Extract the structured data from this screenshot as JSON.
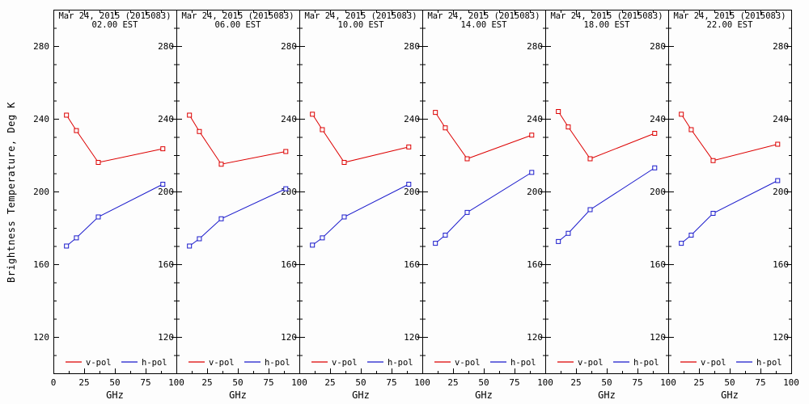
{
  "figure": {
    "ylabel": "Brightness Temperature, Deg K",
    "xlabel": "GHz",
    "colors": {
      "vpol": "#dd0000",
      "hpol": "#1a1acc",
      "axis": "#000000",
      "background": "#fdfdfd"
    },
    "legend": {
      "position": "bottom-inside",
      "entries": [
        {
          "label": "v-pol",
          "color": "#dd0000"
        },
        {
          "label": "h-pol",
          "color": "#1a1acc"
        }
      ]
    }
  },
  "chart_data": [
    {
      "type": "line",
      "title": "Mar 24, 2015 (2015083)",
      "subtitle": "02.00 EST",
      "xlabel": "GHz",
      "xlim": [
        0,
        100
      ],
      "ylim": [
        100,
        300
      ],
      "xticks": [
        0,
        25,
        50,
        75,
        100
      ],
      "yticks": [
        120,
        160,
        200,
        240,
        280
      ],
      "x": [
        10.65,
        18.7,
        36.5,
        89.0
      ],
      "series": [
        {
          "name": "v-pol",
          "color": "#dd0000",
          "values": [
            242.0,
            233.5,
            216.0,
            223.5
          ]
        },
        {
          "name": "h-pol",
          "color": "#1a1acc",
          "values": [
            170.0,
            174.5,
            186.0,
            204.0
          ]
        }
      ]
    },
    {
      "type": "line",
      "title": "Mar 24, 2015 (2015083)",
      "subtitle": "06.00 EST",
      "xlabel": "GHz",
      "xlim": [
        0,
        100
      ],
      "ylim": [
        100,
        300
      ],
      "xticks": [
        25,
        50,
        75,
        100
      ],
      "yticks": [
        120,
        160,
        200,
        240,
        280
      ],
      "x": [
        10.65,
        18.7,
        36.5,
        89.0
      ],
      "series": [
        {
          "name": "v-pol",
          "color": "#dd0000",
          "values": [
            242.0,
            233.0,
            215.0,
            222.0
          ]
        },
        {
          "name": "h-pol",
          "color": "#1a1acc",
          "values": [
            170.0,
            174.0,
            185.0,
            201.5
          ]
        }
      ]
    },
    {
      "type": "line",
      "title": "Mar 24, 2015 (2015083)",
      "subtitle": "10.00 EST",
      "xlabel": "GHz",
      "xlim": [
        0,
        100
      ],
      "ylim": [
        100,
        300
      ],
      "xticks": [
        25,
        50,
        75,
        100
      ],
      "yticks": [
        120,
        160,
        200,
        240,
        280
      ],
      "x": [
        10.65,
        18.7,
        36.5,
        89.0
      ],
      "series": [
        {
          "name": "v-pol",
          "color": "#dd0000",
          "values": [
            242.5,
            234.0,
            216.0,
            224.5
          ]
        },
        {
          "name": "h-pol",
          "color": "#1a1acc",
          "values": [
            170.5,
            174.5,
            186.0,
            204.0
          ]
        }
      ]
    },
    {
      "type": "line",
      "title": "Mar 24, 2015 (2015083)",
      "subtitle": "14.00 EST",
      "xlabel": "GHz",
      "xlim": [
        0,
        100
      ],
      "ylim": [
        100,
        300
      ],
      "xticks": [
        25,
        50,
        75,
        100
      ],
      "yticks": [
        120,
        160,
        200,
        240,
        280
      ],
      "x": [
        10.65,
        18.7,
        36.5,
        89.0
      ],
      "series": [
        {
          "name": "v-pol",
          "color": "#dd0000",
          "values": [
            243.5,
            235.0,
            218.0,
            231.0
          ]
        },
        {
          "name": "h-pol",
          "color": "#1a1acc",
          "values": [
            171.5,
            176.0,
            188.5,
            210.5
          ]
        }
      ]
    },
    {
      "type": "line",
      "title": "Mar 24, 2015 (2015083)",
      "subtitle": "18.00 EST",
      "xlabel": "GHz",
      "xlim": [
        0,
        100
      ],
      "ylim": [
        100,
        300
      ],
      "xticks": [
        25,
        50,
        75,
        100
      ],
      "yticks": [
        120,
        160,
        200,
        240,
        280
      ],
      "x": [
        10.65,
        18.7,
        36.5,
        89.0
      ],
      "series": [
        {
          "name": "v-pol",
          "color": "#dd0000",
          "values": [
            244.0,
            235.5,
            218.0,
            232.0
          ]
        },
        {
          "name": "h-pol",
          "color": "#1a1acc",
          "values": [
            172.5,
            177.0,
            190.0,
            213.0
          ]
        }
      ]
    },
    {
      "type": "line",
      "title": "Mar 24, 2015 (2015083)",
      "subtitle": "22.00 EST",
      "xlabel": "GHz",
      "xlim": [
        0,
        100
      ],
      "ylim": [
        100,
        300
      ],
      "xticks": [
        25,
        50,
        75,
        100
      ],
      "yticks": [
        120,
        160,
        200,
        240,
        280
      ],
      "x": [
        10.65,
        18.7,
        36.5,
        89.0
      ],
      "series": [
        {
          "name": "v-pol",
          "color": "#dd0000",
          "values": [
            242.5,
            234.0,
            217.0,
            226.0
          ]
        },
        {
          "name": "h-pol",
          "color": "#1a1acc",
          "values": [
            171.5,
            176.0,
            188.0,
            206.0
          ]
        }
      ]
    }
  ]
}
